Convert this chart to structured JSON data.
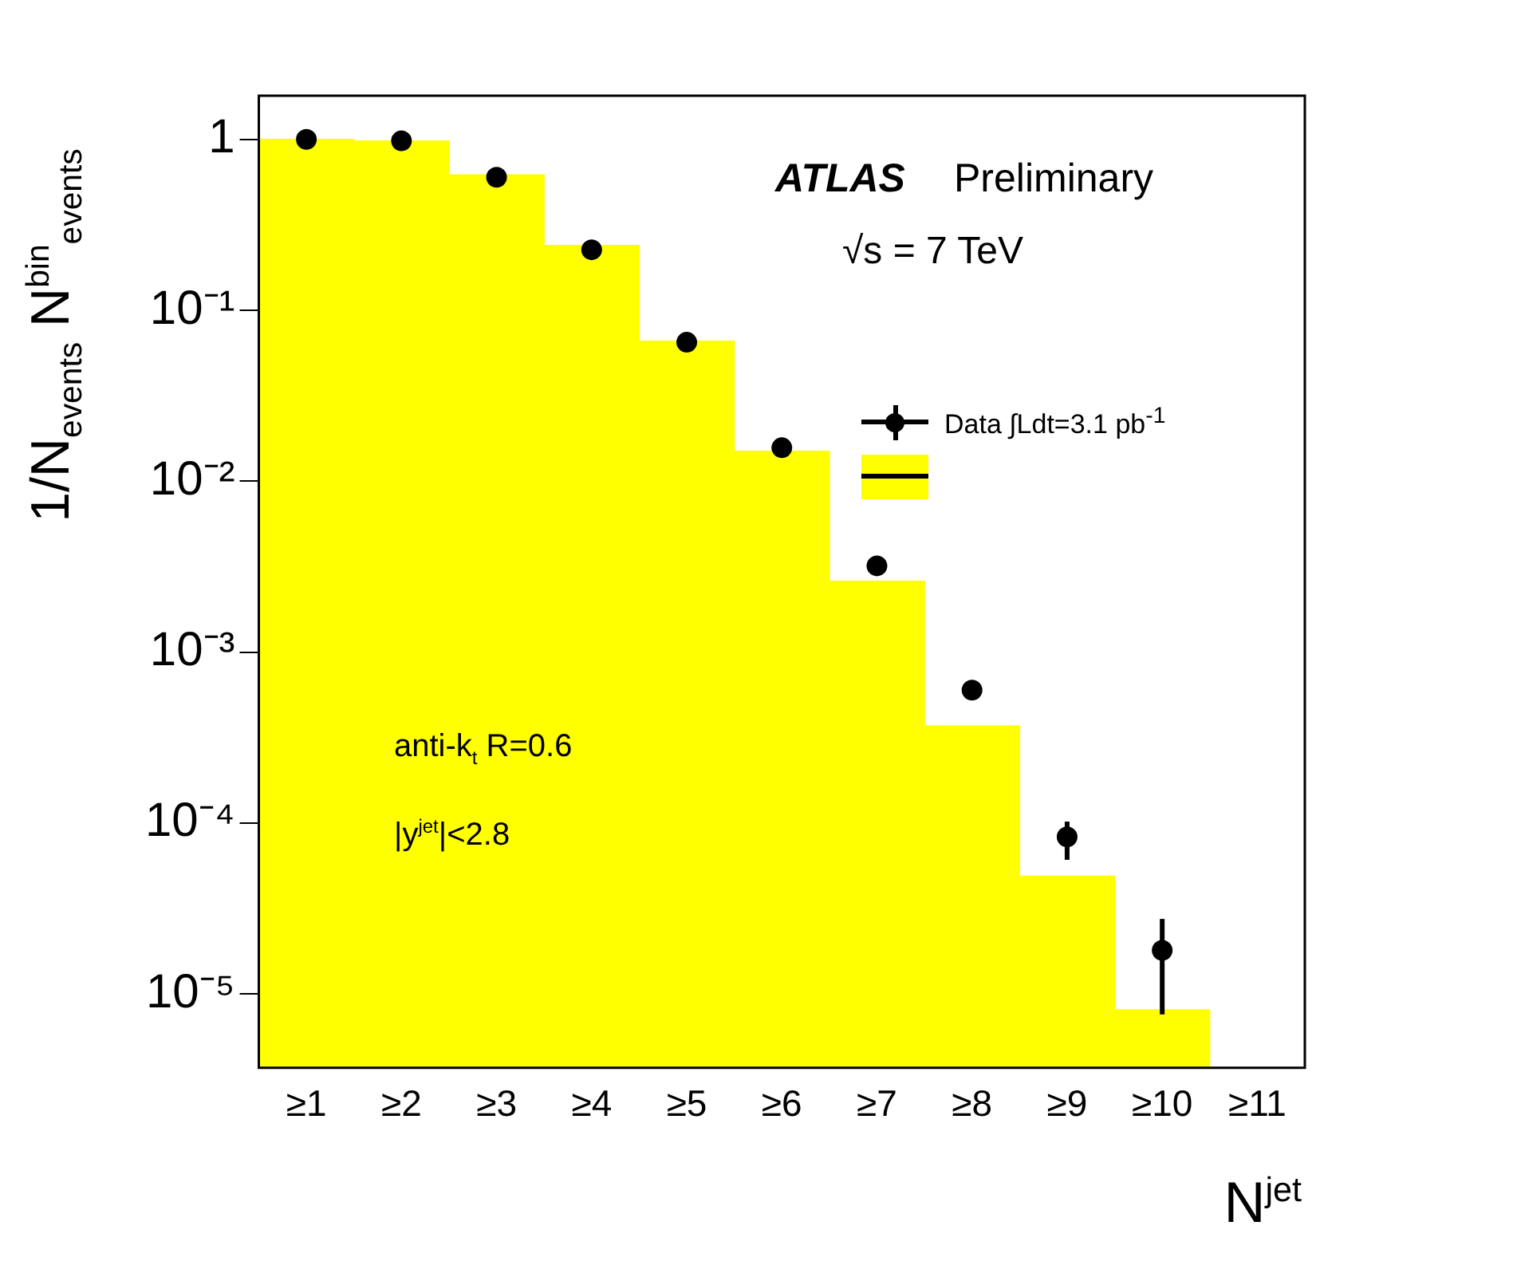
{
  "chart_data": {
    "type": "bar",
    "xlabel": "N$^{jet}$",
    "ylabel": "1/N$_{events}$ N$^{bin}$$_{events}$",
    "categories": [
      "≥1",
      "≥2",
      "≥3",
      "≥4",
      "≥5",
      "≥6",
      "≥7",
      "≥8",
      "≥9",
      "≥10",
      "≥11"
    ],
    "series": [
      {
        "type": "scatter",
        "name": "Data ∫Ldt=3.1 pb$^{-1}$",
        "color": "#000000",
        "x": [
          "≥1",
          "≥2",
          "≥3",
          "≥4",
          "≥5",
          "≥6",
          "≥7",
          "≥8",
          "≥9",
          "≥10"
        ],
        "values": [
          1,
          0.98,
          0.6,
          0.226,
          0.065,
          0.0157,
          0.0032,
          0.0006,
          8.3e-05,
          1.8e-05
        ],
        "errors": [
          null,
          null,
          null,
          null,
          null,
          null,
          null,
          null,
          [
            6.1e-05,
            0.000102
          ],
          [
            7.6e-06,
            2.75e-05
          ]
        ]
      },
      {
        "color": "#ffff00",
        "values": [
          1,
          0.98,
          0.62,
          0.24,
          0.066,
          0.015,
          0.0026,
          0.00037,
          4.9e-05,
          8.1e-06,
          null
        ]
      }
    ],
    "log": true,
    "ylim": [
      3.7e-06,
      1.8
    ],
    "yticks": [
      {
        "value": 1e-05,
        "label": "10⁻⁵"
      },
      {
        "value": 0.0001,
        "label": "10⁻⁴"
      },
      {
        "value": 0.001,
        "label": "10⁻³"
      },
      {
        "value": 0.01,
        "label": "10⁻²"
      },
      {
        "value": 0.1,
        "label": "10⁻¹"
      },
      1
    ],
    "grid": false,
    "legend": "right",
    "marker": "circle",
    "annotations": [
      "ATLAS",
      "Preliminary",
      "√s = 7 TeV",
      "anti-k$_{t}$ R=0.6",
      "|y$^{jet}$|<2.8"
    ]
  }
}
